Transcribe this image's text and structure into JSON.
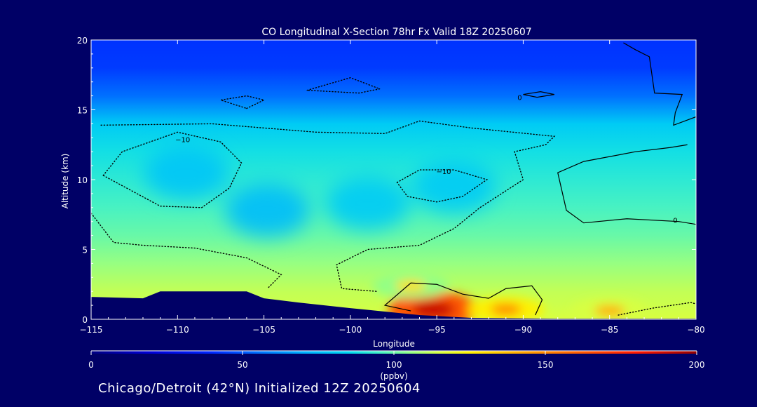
{
  "chart_data": {
    "type": "heatmap",
    "title": "CO Longitudinal X-Section 78hr  Fx Valid 18Z 20250607",
    "xlabel": "Longitude",
    "ylabel": "Altitude (km)",
    "xlim": [
      -115,
      -80
    ],
    "ylim": [
      0,
      20
    ],
    "x_ticks": [
      -115,
      -110,
      -105,
      -100,
      -95,
      -90,
      -85,
      -80
    ],
    "x_tick_labels": [
      "−115",
      "−110",
      "−105",
      "−100",
      "−95",
      "−90",
      "−85",
      "−80"
    ],
    "y_ticks": [
      0,
      5,
      10,
      15,
      20
    ],
    "y_tick_labels": [
      "0",
      "5",
      "10",
      "15",
      "20"
    ],
    "colorbar": {
      "label": "(ppbv)",
      "min": 0,
      "max": 200,
      "ticks": [
        0,
        50,
        100,
        150,
        200
      ],
      "tick_labels": [
        "0",
        "50",
        "100",
        "150",
        "200"
      ]
    },
    "layers": [
      {
        "altitude_km": 20,
        "co_ppbv": 42
      },
      {
        "altitude_km": 18,
        "co_ppbv": 44
      },
      {
        "altitude_km": 16,
        "co_ppbv": 55
      },
      {
        "altitude_km": 14,
        "co_ppbv": 80
      },
      {
        "altitude_km": 12,
        "co_ppbv": 88
      },
      {
        "altitude_km": 10,
        "co_ppbv": 92
      },
      {
        "altitude_km": 8,
        "co_ppbv": 96
      },
      {
        "altitude_km": 6,
        "co_ppbv": 100
      },
      {
        "altitude_km": 4,
        "co_ppbv": 106
      },
      {
        "altitude_km": 2,
        "co_ppbv": 112
      },
      {
        "altitude_km": 0,
        "co_ppbv": 115
      }
    ],
    "hotspots": [
      {
        "lon": -95.2,
        "alt_km": 0.7,
        "co_ppbv": 190
      },
      {
        "lon": -91,
        "alt_km": 0.7,
        "co_ppbv": 150
      },
      {
        "lon": -85,
        "alt_km": 0.6,
        "co_ppbv": 140
      },
      {
        "lon": -96.5,
        "alt_km": 2.4,
        "co_ppbv": 130
      }
    ],
    "lowspots": [
      {
        "lon": -109.5,
        "alt_km": 10.5,
        "co_ppbv": 78
      },
      {
        "lon": -94,
        "alt_km": 9.5,
        "co_ppbv": 80
      },
      {
        "lon": -104.8,
        "alt_km": 7.8,
        "co_ppbv": 75
      },
      {
        "lon": -99,
        "alt_km": 8.3,
        "co_ppbv": 80
      }
    ],
    "terrain": [
      {
        "lon": -115,
        "alt_km": 1.6
      },
      {
        "lon": -112,
        "alt_km": 1.5
      },
      {
        "lon": -111,
        "alt_km": 2.0
      },
      {
        "lon": -106,
        "alt_km": 2.0
      },
      {
        "lon": -105,
        "alt_km": 1.5
      },
      {
        "lon": -103,
        "alt_km": 1.2
      },
      {
        "lon": -100,
        "alt_km": 0.8
      },
      {
        "lon": -96,
        "alt_km": 0.3
      },
      {
        "lon": -93,
        "alt_km": 0.1
      },
      {
        "lon": -88,
        "alt_km": 0.05
      },
      {
        "lon": -80,
        "alt_km": 0.05
      }
    ],
    "contours": [
      {
        "level": 0,
        "style": "solid",
        "points": [
          [
            -96.5,
            0.6
          ],
          [
            -98,
            1.0
          ],
          [
            -96.5,
            2.6
          ],
          [
            -95,
            2.5
          ],
          [
            -93.5,
            1.8
          ],
          [
            -92,
            1.5
          ],
          [
            -91,
            2.2
          ],
          [
            -89.5,
            2.4
          ],
          [
            -88.9,
            1.4
          ],
          [
            -89.3,
            0.3
          ]
        ]
      },
      {
        "level": 0,
        "style": "solid",
        "points": [
          [
            -84.2,
            19.8
          ],
          [
            -83.5,
            19.3
          ],
          [
            -82.7,
            18.8
          ],
          [
            -82.4,
            16.2
          ],
          [
            -80.8,
            16.1
          ],
          [
            -81.2,
            14.8
          ],
          [
            -81.3,
            13.9
          ],
          [
            -80,
            14.5
          ]
        ]
      },
      {
        "level": 0,
        "style": "solid",
        "points": [
          [
            -80,
            6.8
          ],
          [
            -81,
            7.0
          ],
          [
            -84,
            7.2
          ],
          [
            -86.5,
            6.9
          ],
          [
            -87.5,
            7.8
          ],
          [
            -88,
            10.5
          ],
          [
            -86.5,
            11.3
          ],
          [
            -83.5,
            12.0
          ],
          [
            -81.5,
            12.3
          ],
          [
            -80.5,
            12.5
          ]
        ]
      },
      {
        "level": 0,
        "style": "solid",
        "points": [
          [
            -90,
            16.1
          ],
          [
            -89,
            16.3
          ],
          [
            -88.2,
            16.1
          ],
          [
            -89.2,
            15.9
          ],
          [
            -90,
            16.1
          ]
        ]
      },
      {
        "level": -10,
        "style": "dotted",
        "points": [
          [
            -114.3,
            10.3
          ],
          [
            -113.2,
            12.0
          ],
          [
            -110,
            13.4
          ],
          [
            -107.5,
            12.7
          ],
          [
            -106.3,
            11.2
          ],
          [
            -107,
            9.4
          ],
          [
            -108.6,
            8.0
          ],
          [
            -111,
            8.1
          ],
          [
            -114.3,
            10.3
          ]
        ]
      },
      {
        "level": -10,
        "style": "dotted",
        "points": [
          [
            -97.3,
            9.8
          ],
          [
            -96,
            10.7
          ],
          [
            -94,
            10.7
          ],
          [
            -92.1,
            10.0
          ],
          [
            -93.5,
            8.8
          ],
          [
            -95,
            8.4
          ],
          [
            -96.7,
            8.8
          ],
          [
            -97.3,
            9.8
          ]
        ]
      },
      {
        "level": -10,
        "style": "dotted",
        "points": [
          [
            -115,
            7.6
          ],
          [
            -113.7,
            5.5
          ],
          [
            -112,
            5.3
          ],
          [
            -109,
            5.1
          ],
          [
            -106,
            4.4
          ],
          [
            -104,
            3.2
          ],
          [
            -104.8,
            2.2
          ]
        ]
      },
      {
        "level": -10,
        "style": "dotted",
        "points": [
          [
            -98.5,
            2.0
          ],
          [
            -100.5,
            2.2
          ],
          [
            -100.8,
            3.9
          ],
          [
            -99,
            5.0
          ],
          [
            -96,
            5.3
          ],
          [
            -94,
            6.5
          ],
          [
            -92.5,
            8.0
          ],
          [
            -90,
            10.0
          ],
          [
            -90.5,
            12.0
          ],
          [
            -88.7,
            12.5
          ],
          [
            -88.2,
            13.1
          ],
          [
            -93,
            13.7
          ],
          [
            -96,
            14.2
          ],
          [
            -98,
            13.3
          ],
          [
            -102,
            13.4
          ],
          [
            -108,
            14.0
          ],
          [
            -114.5,
            13.9
          ]
        ]
      },
      {
        "level": -10,
        "style": "dotted",
        "points": [
          [
            -106,
            15.1
          ],
          [
            -105,
            15.7
          ],
          [
            -106,
            16.0
          ],
          [
            -107.5,
            15.7
          ],
          [
            -106,
            15.1
          ]
        ]
      },
      {
        "level": -10,
        "style": "dotted",
        "points": [
          [
            -102.5,
            16.4
          ],
          [
            -100,
            17.3
          ],
          [
            -98.3,
            16.5
          ],
          [
            -99.5,
            16.2
          ],
          [
            -102.5,
            16.4
          ]
        ]
      },
      {
        "level": -10,
        "style": "dotted",
        "points": [
          [
            -84.5,
            0.3
          ],
          [
            -82.5,
            0.8
          ],
          [
            -80.3,
            1.2
          ],
          [
            -80,
            1.1
          ]
        ]
      }
    ],
    "contour_labels": [
      {
        "text": "−10",
        "lon": -109.7,
        "alt_km": 12.9
      },
      {
        "text": "−10",
        "lon": -94.6,
        "alt_km": 10.6
      },
      {
        "text": "0",
        "lon": -90.2,
        "alt_km": 15.9
      },
      {
        "text": "0",
        "lon": -81.2,
        "alt_km": 7.1
      }
    ]
  },
  "footer": "Chicago/Detroit (42°N) Initialized 12Z 20250604"
}
